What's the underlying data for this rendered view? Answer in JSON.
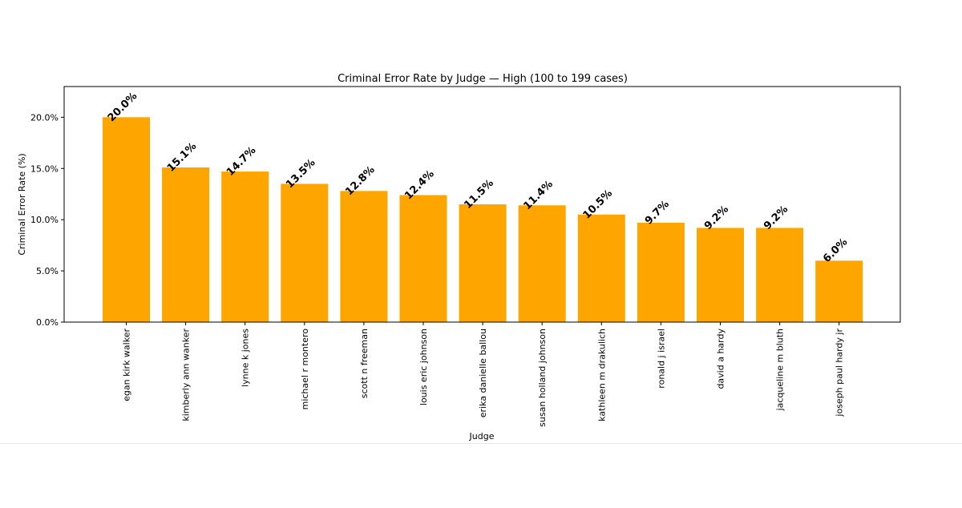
{
  "chart_data": {
    "type": "bar",
    "title": "Criminal Error Rate by Judge — High (100 to 199 cases)",
    "xlabel": "Judge",
    "ylabel": "Criminal Error Rate (%)",
    "ylim": [
      0,
      23
    ],
    "yticks": [
      0,
      5,
      10,
      15,
      20
    ],
    "ytick_labels": [
      "0.0%",
      "5.0%",
      "10.0%",
      "15.0%",
      "20.0%"
    ],
    "grid": false,
    "bar_color": "#FFA500",
    "categories": [
      "egan kirk walker",
      "kimberly ann wanker",
      "lynne k jones",
      "michael r montero",
      "scott n freeman",
      "louis eric johnson",
      "erika danielle ballou",
      "susan holland johnson",
      "kathleen m drakulich",
      "ronald j israel",
      "david a hardy",
      "jacqueline m bluth",
      "joseph paul hardy jr"
    ],
    "values": [
      20.0,
      15.1,
      14.7,
      13.5,
      12.8,
      12.4,
      11.5,
      11.4,
      10.5,
      9.7,
      9.2,
      9.2,
      6.0
    ],
    "data_labels": [
      "20.0%",
      "15.1%",
      "14.7%",
      "13.5%",
      "12.8%",
      "12.4%",
      "11.5%",
      "11.4%",
      "10.5%",
      "9.7%",
      "9.2%",
      "9.2%",
      "6.0%"
    ]
  }
}
